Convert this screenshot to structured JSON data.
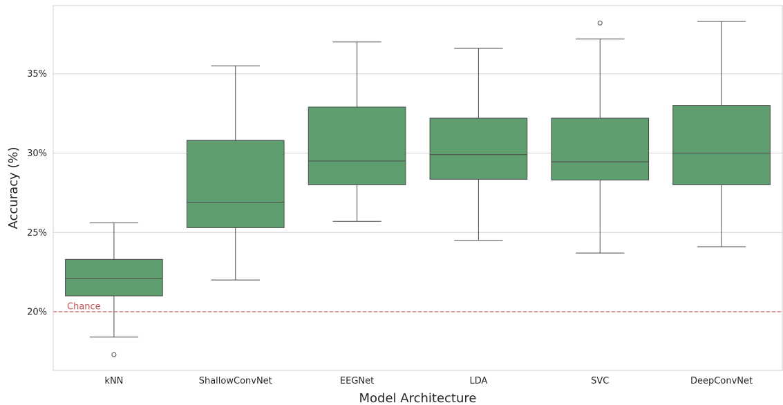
{
  "chart_data": {
    "type": "box",
    "xlabel": "Model Architecture",
    "ylabel": "Accuracy (%)",
    "ylim": [
      16.3,
      39.3
    ],
    "yticks": [
      20,
      25,
      30,
      35
    ],
    "ytick_labels": [
      "20%",
      "25%",
      "30%",
      "35%"
    ],
    "grid": "horizontal",
    "categories": [
      "kNN",
      "ShallowConvNet",
      "EEGNet",
      "LDA",
      "SVC",
      "DeepConvNet"
    ],
    "boxes": [
      {
        "category": "kNN",
        "whisker_low": 18.4,
        "q1": 21.0,
        "median": 22.1,
        "q3": 23.3,
        "whisker_high": 25.6,
        "outliers": [
          17.3
        ]
      },
      {
        "category": "ShallowConvNet",
        "whisker_low": 22.0,
        "q1": 25.3,
        "median": 26.9,
        "q3": 30.8,
        "whisker_high": 35.5,
        "outliers": []
      },
      {
        "category": "EEGNet",
        "whisker_low": 25.7,
        "q1": 28.0,
        "median": 29.5,
        "q3": 32.9,
        "whisker_high": 37.0,
        "outliers": []
      },
      {
        "category": "LDA",
        "whisker_low": 24.5,
        "q1": 28.35,
        "median": 29.9,
        "q3": 32.2,
        "whisker_high": 36.6,
        "outliers": []
      },
      {
        "category": "SVC",
        "whisker_low": 23.7,
        "q1": 28.3,
        "median": 29.45,
        "q3": 32.2,
        "whisker_high": 37.2,
        "outliers": [
          38.2
        ]
      },
      {
        "category": "DeepConvNet",
        "whisker_low": 24.1,
        "q1": 28.0,
        "median": 30.0,
        "q3": 33.0,
        "whisker_high": 38.3,
        "outliers": []
      }
    ],
    "reference_line": {
      "value": 20,
      "label": "Chance",
      "style": "dashed"
    },
    "colors": {
      "box_fill": "#5f9e6e",
      "box_edge": "#4a4a4a",
      "grid": "#d5d5d5",
      "spine": "#cfcfcf",
      "chance_line": "#c44e52",
      "chance_label": "#c44e52"
    }
  }
}
